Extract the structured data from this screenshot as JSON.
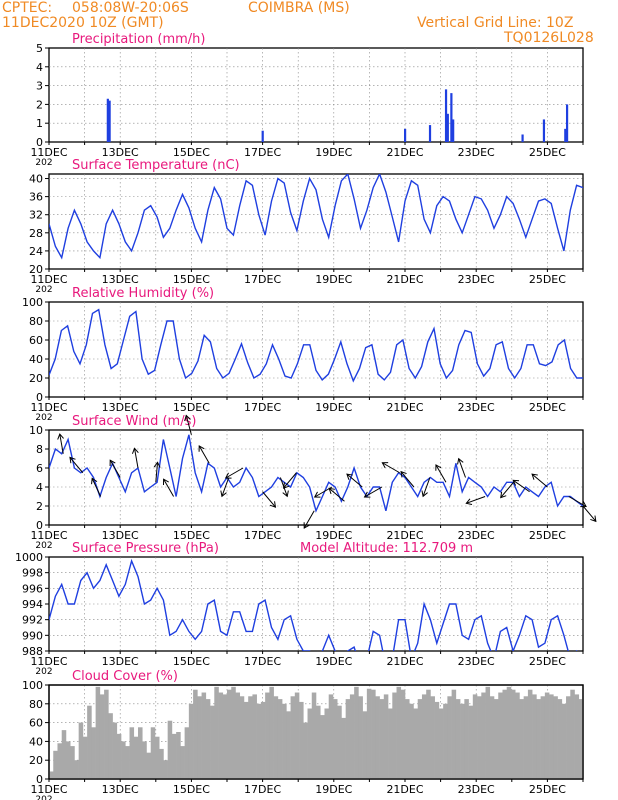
{
  "header": {
    "source": "CPTEC:",
    "coords": "058:08W-20:06S",
    "location": "COIMBRA (MS)",
    "run": "11DEC2020 10Z (GMT)",
    "grid_note": "Vertical Grid Line: 10Z",
    "code": "TQ0126L028"
  },
  "colors": {
    "header": "#f08a24",
    "title": "#e8197d",
    "line": "#1f3fe0",
    "bar": "#1f3fe0",
    "cloud": "#a9a9a9",
    "grid": "#888888",
    "arrow": "#000000"
  },
  "x_ticks": [
    "11DEC",
    "13DEC",
    "15DEC",
    "17DEC",
    "19DEC",
    "21DEC",
    "23DEC",
    "25DEC"
  ],
  "year_stub": "202",
  "panels": {
    "precip": {
      "title": "Precipitation (mm/h)"
    },
    "temp": {
      "title": "Surface Temperature (nC)"
    },
    "rh": {
      "title": "Relative Humidity (%)"
    },
    "wind": {
      "title": "Surface Wind (m/s)"
    },
    "pressure": {
      "title": "Surface Pressure (hPa)",
      "extra": "Model Altitude: 112.709 m"
    },
    "cloud": {
      "title": "Cloud Cover (%)"
    }
  },
  "chart_data": [
    {
      "type": "bar",
      "title": "Precipitation (mm/h)",
      "ylim": [
        0,
        5
      ],
      "yticks": [
        0,
        1,
        2,
        3,
        4,
        5
      ],
      "x_unit": "days since 11DEC 10Z",
      "events": [
        [
          1.65,
          2.3
        ],
        [
          1.7,
          2.2
        ],
        [
          6.0,
          0.6
        ],
        [
          10.0,
          0.7
        ],
        [
          10.7,
          0.9
        ],
        [
          11.15,
          2.8
        ],
        [
          11.2,
          1.5
        ],
        [
          11.3,
          2.6
        ],
        [
          11.35,
          1.2
        ],
        [
          13.3,
          0.4
        ],
        [
          13.9,
          1.2
        ],
        [
          14.5,
          0.7
        ],
        [
          14.55,
          2.0
        ]
      ]
    },
    {
      "type": "line",
      "title": "Surface Temperature (nC)",
      "ylim": [
        20,
        41
      ],
      "yticks": [
        20,
        24,
        28,
        32,
        36,
        40
      ],
      "series": [
        {
          "values": [
            30,
            25,
            22.5,
            29,
            33,
            30,
            26,
            24,
            22.5,
            30,
            33,
            30,
            26,
            24,
            28,
            33,
            34,
            31.5,
            27,
            29,
            33,
            36.5,
            33.5,
            29,
            26,
            33,
            38,
            35.5,
            29,
            27.5,
            34,
            39.5,
            38.5,
            32,
            27.5,
            35,
            40,
            39,
            32.5,
            28.5,
            35,
            40,
            37.5,
            31,
            27,
            34,
            39.5,
            41,
            35.5,
            29,
            33,
            38,
            41,
            37,
            31.5,
            26,
            35,
            39.5,
            38.5,
            31,
            28,
            34,
            36,
            35,
            31,
            28,
            32,
            36,
            35.5,
            33,
            29,
            32,
            36,
            34.5,
            31,
            27,
            31,
            35,
            35.5,
            34.5,
            29,
            24,
            33,
            38.5,
            38
          ]
        }
      ]
    },
    {
      "type": "line",
      "title": "Relative Humidity (%)",
      "ylim": [
        0,
        100
      ],
      "yticks": [
        0,
        20,
        40,
        60,
        80,
        100
      ],
      "series": [
        {
          "values": [
            23,
            40,
            70,
            75,
            48,
            35,
            55,
            88,
            92,
            55,
            30,
            35,
            60,
            85,
            90,
            40,
            24,
            28,
            55,
            80,
            80,
            40,
            20,
            25,
            38,
            65,
            58,
            30,
            20,
            25,
            40,
            56,
            36,
            20,
            24,
            35,
            55,
            40,
            22,
            20,
            35,
            55,
            55,
            28,
            18,
            24,
            40,
            58,
            35,
            17,
            30,
            52,
            55,
            24,
            18,
            26,
            55,
            60,
            30,
            20,
            32,
            58,
            72,
            35,
            20,
            28,
            55,
            70,
            68,
            35,
            22,
            30,
            55,
            58,
            30,
            20,
            30,
            55,
            55,
            35,
            33,
            37,
            55,
            60,
            30,
            20,
            20
          ]
        }
      ]
    },
    {
      "type": "line",
      "title": "Surface Wind (m/s)",
      "ylim": [
        0,
        10
      ],
      "yticks": [
        0,
        2,
        4,
        6,
        8,
        10
      ],
      "series": [
        {
          "values": [
            6,
            8,
            7.5,
            9,
            6,
            5.5,
            6,
            5,
            3,
            5,
            6.5,
            5,
            3.5,
            5.5,
            6,
            3.5,
            4,
            4.5,
            9,
            6,
            3,
            7,
            9.5,
            5.5,
            3.5,
            6.5,
            6,
            4,
            5,
            4,
            4.5,
            6,
            5,
            3,
            3.5,
            4,
            5,
            4.5,
            4,
            5.5,
            5,
            4,
            1.5,
            3,
            4.5,
            4,
            2.5,
            4,
            6,
            4,
            3,
            4,
            4,
            1.5,
            4.5,
            5.5,
            5,
            4,
            3,
            4.5,
            5,
            4.5,
            4.5,
            3,
            6.5,
            3.5,
            5,
            4.5,
            4,
            3,
            4,
            3.5,
            4.5,
            4.5,
            3,
            4,
            3.5,
            3,
            4,
            4.5,
            2,
            3,
            3,
            2.5,
            2
          ]
        }
      ],
      "vectors": [
        [
          0.4,
          190
        ],
        [
          0.95,
          220
        ],
        [
          1.45,
          205
        ],
        [
          2.0,
          210
        ],
        [
          2.5,
          190
        ],
        [
          3.0,
          175
        ],
        [
          3.5,
          210
        ],
        [
          4.0,
          195
        ],
        [
          4.5,
          210
        ],
        [
          5.05,
          340
        ],
        [
          5.45,
          300
        ],
        [
          6.0,
          40
        ],
        [
          6.5,
          20
        ],
        [
          6.95,
          320
        ],
        [
          7.45,
          330
        ],
        [
          7.95,
          300
        ],
        [
          8.3,
          230
        ],
        [
          8.8,
          230
        ],
        [
          9.35,
          300
        ],
        [
          9.85,
          240
        ],
        [
          10.25,
          220
        ],
        [
          10.7,
          340
        ],
        [
          11.15,
          210
        ],
        [
          11.7,
          200
        ],
        [
          12.25,
          290
        ],
        [
          13.05,
          320
        ],
        [
          13.5,
          235
        ],
        [
          14.0,
          230
        ],
        [
          14.6,
          60
        ],
        [
          15.0,
          40
        ]
      ]
    },
    {
      "type": "line",
      "title": "Surface Pressure (hPa)",
      "ylim": [
        988,
        1000
      ],
      "yticks": [
        988,
        990,
        992,
        994,
        996,
        998,
        1000
      ],
      "series": [
        {
          "values": [
            992,
            995,
            996.5,
            994,
            994,
            997,
            998,
            996,
            997,
            999,
            997,
            995,
            996.5,
            999.5,
            997.5,
            994,
            994.5,
            996,
            994.5,
            990,
            990.5,
            992,
            990.5,
            989.5,
            990.5,
            994,
            994.5,
            990.5,
            990,
            993,
            993,
            990.5,
            990.5,
            994,
            994.5,
            991,
            989.5,
            992,
            992.5,
            989.5,
            988,
            988,
            986,
            988,
            990,
            988,
            986,
            988,
            988.5,
            986,
            987,
            990.5,
            990,
            986,
            987,
            992,
            992,
            987,
            989,
            994,
            992,
            989,
            991.5,
            994,
            994,
            990,
            989.5,
            992,
            992.5,
            989,
            987,
            990.5,
            991,
            988,
            990,
            992.5,
            992,
            988.5,
            989,
            992,
            992.5,
            990,
            987,
            988,
            987
          ]
        }
      ]
    },
    {
      "type": "bar",
      "title": "Cloud Cover (%)",
      "ylim": [
        0,
        100
      ],
      "yticks": [
        0,
        20,
        40,
        60,
        80,
        100
      ],
      "values": [
        8,
        30,
        38,
        52,
        40,
        35,
        20,
        60,
        45,
        78,
        55,
        98,
        90,
        95,
        70,
        60,
        48,
        40,
        35,
        55,
        45,
        55,
        40,
        28,
        55,
        45,
        32,
        20,
        62,
        48,
        50,
        35,
        55,
        80,
        95,
        88,
        92,
        85,
        78,
        98,
        92,
        90,
        95,
        98,
        92,
        88,
        82,
        88,
        90,
        80,
        82,
        92,
        98,
        88,
        85,
        80,
        72,
        88,
        92,
        82,
        60,
        75,
        92,
        78,
        68,
        75,
        90,
        85,
        78,
        65,
        85,
        90,
        98,
        88,
        72,
        96,
        95,
        88,
        85,
        90,
        75,
        92,
        98,
        95,
        85,
        80,
        75,
        85,
        90,
        95,
        88,
        82,
        75,
        80,
        88,
        95,
        85,
        80,
        85,
        78,
        90,
        88,
        92,
        98,
        88,
        85,
        92,
        95,
        98,
        95,
        92,
        85,
        88,
        95,
        90,
        85,
        88,
        92,
        90,
        88,
        85,
        80,
        88,
        95,
        90,
        85
      ]
    }
  ]
}
